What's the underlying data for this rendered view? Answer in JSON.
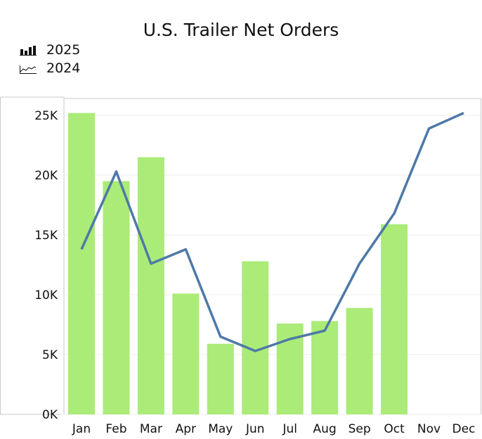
{
  "chart_data": {
    "type": "bar",
    "title": "U.S. Trailer Net Orders",
    "categories": [
      "Jan",
      "Feb",
      "Mar",
      "Apr",
      "May",
      "Jun",
      "Jul",
      "Aug",
      "Sep",
      "Oct",
      "Nov",
      "Dec"
    ],
    "series": [
      {
        "name": "2025",
        "kind": "bar",
        "color": "#abeb78",
        "values": [
          25.2,
          19.5,
          21.5,
          10.1,
          5.9,
          12.8,
          7.6,
          7.8,
          8.9,
          15.9,
          null,
          null
        ]
      },
      {
        "name": "2024",
        "kind": "line",
        "color": "#4e79a7",
        "values": [
          13.8,
          20.3,
          12.6,
          13.8,
          6.5,
          5.3,
          6.3,
          7.0,
          12.6,
          16.8,
          23.9,
          25.2
        ]
      }
    ],
    "units": "thousands",
    "yticks": [
      0,
      5,
      10,
      15,
      20,
      25
    ],
    "ytick_labels": [
      "0K",
      "5K",
      "10K",
      "15K",
      "20K",
      "25K"
    ],
    "ylim": [
      0,
      26.5
    ],
    "xlabel": "",
    "ylabel": "",
    "grid": true,
    "legend_placement": "top-left"
  }
}
